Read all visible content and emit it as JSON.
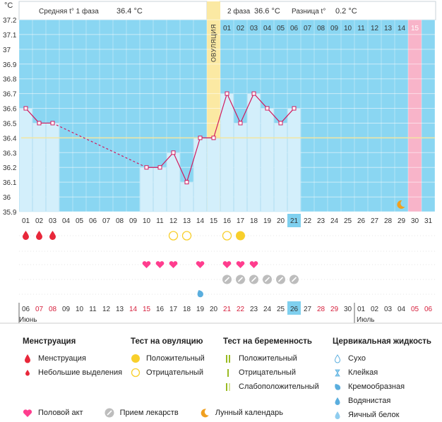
{
  "header": {
    "unit": "°C",
    "phase1_label": "Средняя t° 1 фаза",
    "phase1_value": "36.4 °C",
    "phase2_label": "2 фаза",
    "phase2_value": "36.6 °C",
    "diff_label": "Разница t°",
    "diff_value": "0.2 °C"
  },
  "ovulation_label": "ОВУЛЯЦИЯ",
  "ovulation_day": 15,
  "cover_line": 36.4,
  "colors": {
    "plot_bg": "#8ad6f2",
    "bar": "#d3effb",
    "ovulation": "#fbe9a3",
    "today": "#f8b4c9",
    "line": "#d2185c",
    "cover": "#f3e6a0",
    "heart": "#ff3d8e",
    "drop": "#e8273a"
  },
  "chart_data": {
    "type": "line",
    "ylim": [
      35.9,
      37.2
    ],
    "yticks": [
      "35.9",
      "36",
      "36.1",
      "36.2",
      "36.3",
      "36.4",
      "36.5",
      "36.6",
      "36.7",
      "36.8",
      "36.9",
      "37",
      "37.1",
      "37.2"
    ],
    "cycle_days": [
      "01",
      "02",
      "03",
      "04",
      "05",
      "06",
      "07",
      "08",
      "09",
      "10",
      "11",
      "12",
      "13",
      "14",
      "15",
      "16",
      "17",
      "18",
      "19",
      "20",
      "21",
      "22",
      "23",
      "24",
      "25",
      "26",
      "27",
      "28",
      "29",
      "30",
      "31"
    ],
    "phase2_days": [
      "01",
      "02",
      "03",
      "04",
      "05",
      "06",
      "07",
      "08",
      "09",
      "10",
      "11",
      "12",
      "13",
      "14",
      "15"
    ],
    "series": [
      {
        "values": [
          36.6,
          36.5,
          36.5,
          null,
          null,
          null,
          null,
          null,
          null,
          36.2,
          36.2,
          36.3,
          36.1,
          36.4,
          36.4,
          36.7,
          36.5,
          36.7,
          36.6,
          36.5,
          36.6,
          null,
          null,
          null,
          null,
          null,
          null,
          null,
          null,
          null,
          null
        ]
      }
    ],
    "dashed_segment": [
      3,
      10
    ],
    "current_cycle_day": "21",
    "highlight_day": "30"
  },
  "markers": {
    "menstruation_days": [
      1,
      2,
      3
    ],
    "ovulation_test_negative": [
      12,
      13,
      16
    ],
    "ovulation_test_positive": [
      17
    ],
    "intercourse_days": [
      10,
      11,
      12,
      14,
      16,
      17,
      18
    ],
    "medication_days": [
      16,
      17,
      18,
      19,
      20,
      21
    ],
    "cervical_watery_days": [
      14
    ],
    "moon_day": 29
  },
  "dates": {
    "items": [
      "06",
      "07",
      "08",
      "09",
      "10",
      "11",
      "12",
      "13",
      "14",
      "15",
      "16",
      "17",
      "18",
      "19",
      "20",
      "21",
      "22",
      "23",
      "24",
      "25",
      "26",
      "27",
      "28",
      "29",
      "30",
      "01",
      "02",
      "03",
      "04",
      "05",
      "06"
    ],
    "weekend_days": [
      2,
      3,
      9,
      10,
      16,
      17,
      23,
      24,
      30,
      31
    ],
    "today_index": 21,
    "month1": "Июнь",
    "month2": "Июль",
    "month2_start": 26
  },
  "legend": {
    "menstruation": {
      "title": "Менструация",
      "items": [
        "Менструация",
        "Небольшие выделения"
      ]
    },
    "ovulation_test": {
      "title": "Тест на овуляцию",
      "items": [
        "Положительный",
        "Отрицательный"
      ]
    },
    "pregnancy_test": {
      "title": "Тест на беременность",
      "items": [
        "Положительный",
        "Отрицательный",
        "Слабоположительный"
      ]
    },
    "cervical": {
      "title": "Цервикальная жидкость",
      "items": [
        "Сухо",
        "Клейкая",
        "Кремообразная",
        "Водянистая",
        "Яичный белок"
      ]
    },
    "bottom": {
      "intercourse": "Половой акт",
      "medication": "Прием лекарств",
      "lunar": "Лунный календарь"
    }
  }
}
